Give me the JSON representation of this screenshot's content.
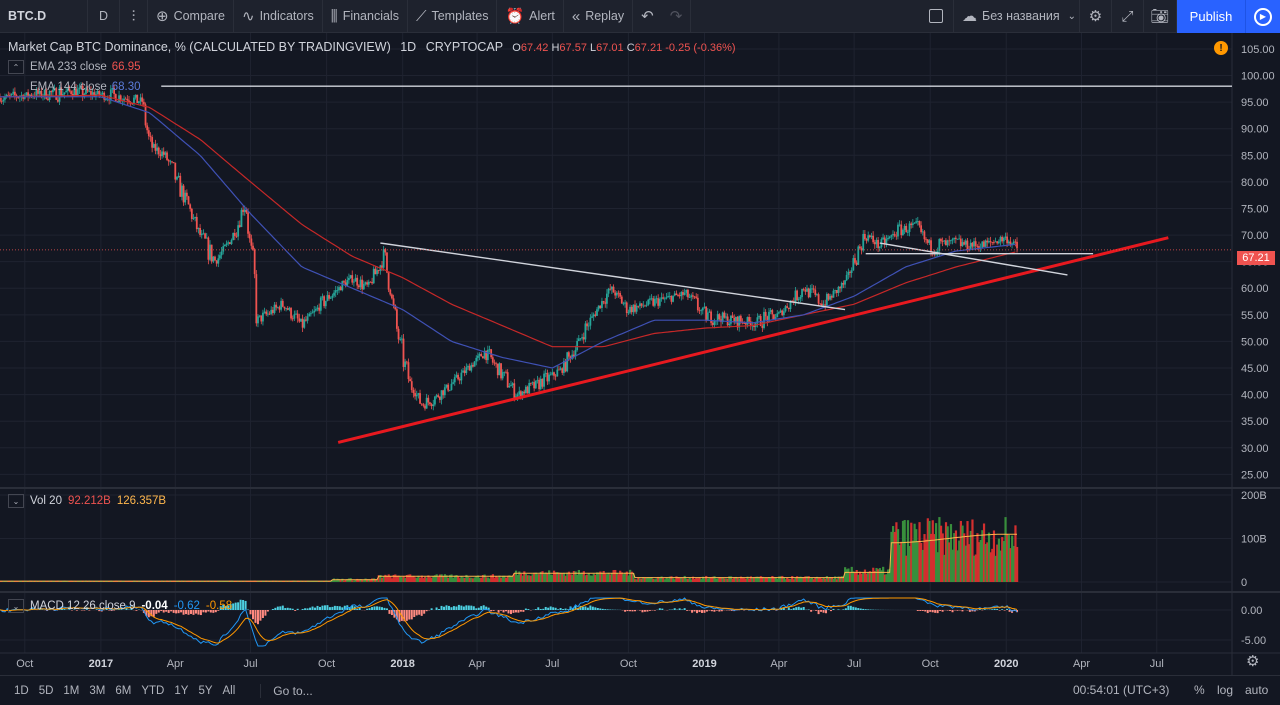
{
  "toolbar": {
    "symbol": "BTC.D",
    "interval": "D",
    "compare": "Compare",
    "indicators": "Indicators",
    "financials": "Financials",
    "templates": "Templates",
    "alert": "Alert",
    "replay": "Replay",
    "layout_name": "Без названия",
    "publish": "Publish"
  },
  "legend": {
    "title": "Market Cap BTC Dominance, % (CALCULATED BY TRADINGVIEW)",
    "interval": "1D",
    "exchange": "CRYPTOCAP",
    "open_label": "O",
    "open": "67.42",
    "high_label": "H",
    "high": "67.57",
    "low_label": "L",
    "low": "67.01",
    "close_label": "C",
    "close": "67.21",
    "change": "-0.25 (-0.36%)"
  },
  "ema233": {
    "label": "EMA 233 close",
    "value": "66.95",
    "color": "#ef5350"
  },
  "ema144": {
    "label": "EMA 144 close",
    "value": "68.30",
    "color": "#2962ff"
  },
  "volume": {
    "label": "Vol 20",
    "value1": "92.212B",
    "value2": "126.357B"
  },
  "macd": {
    "label": "MACD 12 26 close 9",
    "value1": "-0.04",
    "value2": "-0.62",
    "value3": "-0.58"
  },
  "price_tag": "67.21",
  "colors": {
    "up": "#26a69a",
    "down": "#ef5350",
    "vol_up": "#388e3c",
    "vol_down": "#d32f2f",
    "trend_red": "#e7191f",
    "trend_white": "#d1d4dc",
    "accent": "#2962ff"
  },
  "chart_data": {
    "type": "candlestick",
    "price_axis": [
      "105.00",
      "100.00",
      "95.00",
      "90.00",
      "85.00",
      "80.00",
      "75.00",
      "70.00",
      "65.00",
      "60.00",
      "55.00",
      "50.00",
      "45.00",
      "40.00",
      "35.00",
      "30.00",
      "25.00"
    ],
    "price_range": [
      25,
      108
    ],
    "volume_axis": [
      "200B",
      "100B",
      "0"
    ],
    "macd_axis": [
      "0.00",
      "-5.00"
    ],
    "time_axis": [
      "Oct",
      "2017",
      "Apr",
      "Jul",
      "Oct",
      "2018",
      "Apr",
      "Jul",
      "Oct",
      "2019",
      "Apr",
      "Jul",
      "Oct",
      "2020",
      "Apr",
      "Jul"
    ],
    "close_path": [
      [
        "2016-09-01",
        95.8
      ],
      [
        "2016-10-15",
        96.5
      ],
      [
        "2016-12-01",
        97.0
      ],
      [
        "2017-01-15",
        96.2
      ],
      [
        "2017-02-20",
        95.2
      ],
      [
        "2017-03-01",
        87.0
      ],
      [
        "2017-03-20",
        85.0
      ],
      [
        "2017-04-10",
        78.0
      ],
      [
        "2017-05-01",
        70.0
      ],
      [
        "2017-05-20",
        65.0
      ],
      [
        "2017-06-10",
        70.0
      ],
      [
        "2017-06-25",
        76.0
      ],
      [
        "2017-07-10",
        54.0
      ],
      [
        "2017-08-10",
        57.0
      ],
      [
        "2017-09-01",
        53.0
      ],
      [
        "2017-10-01",
        58.0
      ],
      [
        "2017-11-01",
        62.0
      ],
      [
        "2017-11-20",
        60.0
      ],
      [
        "2017-12-10",
        66.0
      ],
      [
        "2017-12-25",
        52.0
      ],
      [
        "2018-01-10",
        42.0
      ],
      [
        "2018-01-25",
        38.0
      ],
      [
        "2018-02-15",
        40.0
      ],
      [
        "2018-03-15",
        44.0
      ],
      [
        "2018-04-10",
        48.0
      ],
      [
        "2018-05-01",
        44.0
      ],
      [
        "2018-05-20",
        40.0
      ],
      [
        "2018-06-15",
        42.0
      ],
      [
        "2018-07-15",
        45.0
      ],
      [
        "2018-08-20",
        55.0
      ],
      [
        "2018-09-10",
        60.0
      ],
      [
        "2018-10-01",
        56.0
      ],
      [
        "2018-11-15",
        58.0
      ],
      [
        "2018-12-10",
        59.0
      ],
      [
        "2019-01-01",
        55.0
      ],
      [
        "2019-02-01",
        54.0
      ],
      [
        "2019-03-01",
        53.5
      ],
      [
        "2019-04-01",
        55.0
      ],
      [
        "2019-05-01",
        60.0
      ],
      [
        "2019-05-25",
        57.0
      ],
      [
        "2019-06-20",
        61.0
      ],
      [
        "2019-07-15",
        70.0
      ],
      [
        "2019-08-01",
        68.0
      ],
      [
        "2019-08-25",
        71.0
      ],
      [
        "2019-09-10",
        71.5
      ],
      [
        "2019-10-01",
        68.0
      ],
      [
        "2019-11-01",
        68.5
      ],
      [
        "2019-12-01",
        68.0
      ],
      [
        "2020-01-01",
        69.5
      ],
      [
        "2020-01-15",
        67.2
      ]
    ],
    "ema233_path": [
      [
        "2016-09-01",
        96.0
      ],
      [
        "2017-01-01",
        96.3
      ],
      [
        "2017-03-01",
        94.0
      ],
      [
        "2017-05-01",
        88.0
      ],
      [
        "2017-07-01",
        80.0
      ],
      [
        "2017-09-01",
        72.0
      ],
      [
        "2017-11-01",
        66.0
      ],
      [
        "2018-01-01",
        62.0
      ],
      [
        "2018-03-01",
        57.0
      ],
      [
        "2018-05-01",
        53.0
      ],
      [
        "2018-07-01",
        49.0
      ],
      [
        "2018-09-01",
        49.0
      ],
      [
        "2018-11-01",
        51.5
      ],
      [
        "2019-01-01",
        52.5
      ],
      [
        "2019-03-01",
        53.0
      ],
      [
        "2019-05-01",
        55.0
      ],
      [
        "2019-07-01",
        57.0
      ],
      [
        "2019-09-01",
        61.0
      ],
      [
        "2019-11-01",
        64.0
      ],
      [
        "2020-01-15",
        66.95
      ]
    ],
    "ema144_path": [
      [
        "2016-09-01",
        96.0
      ],
      [
        "2017-01-01",
        96.0
      ],
      [
        "2017-03-01",
        93.0
      ],
      [
        "2017-05-01",
        85.0
      ],
      [
        "2017-07-01",
        74.0
      ],
      [
        "2017-09-01",
        64.0
      ],
      [
        "2017-11-01",
        60.0
      ],
      [
        "2018-01-01",
        56.0
      ],
      [
        "2018-03-01",
        50.0
      ],
      [
        "2018-05-01",
        47.0
      ],
      [
        "2018-07-01",
        45.0
      ],
      [
        "2018-09-01",
        50.0
      ],
      [
        "2018-11-01",
        54.0
      ],
      [
        "2019-01-01",
        54.0
      ],
      [
        "2019-03-01",
        53.5
      ],
      [
        "2019-05-01",
        55.0
      ],
      [
        "2019-07-01",
        58.5
      ],
      [
        "2019-09-01",
        64.0
      ],
      [
        "2019-11-01",
        67.0
      ],
      [
        "2020-01-15",
        68.3
      ]
    ],
    "trendlines": [
      {
        "name": "support",
        "color": "#e7191f",
        "from": [
          "2017-10-15",
          31
        ],
        "to": [
          "2020-07-15",
          69.5
        ]
      },
      {
        "name": "resistance",
        "color": "#d1d4dc",
        "from": [
          "2017-12-05",
          68.5
        ],
        "to": [
          "2019-06-20",
          56.0
        ]
      },
      {
        "name": "top",
        "color": "#d1d4dc",
        "from": [
          "2017-03-15",
          98
        ],
        "to": [
          "2020-09-30",
          98
        ]
      },
      {
        "name": "channel",
        "color": "#d1d4dc",
        "from": [
          "2019-08-01",
          68.5
        ],
        "to": [
          "2020-03-15",
          62.5
        ]
      },
      {
        "name": "horizontal",
        "color": "#d1d4dc",
        "from": [
          "2019-07-15",
          66.5
        ],
        "to": [
          "2020-04-15",
          66.5
        ]
      }
    ]
  }
}
